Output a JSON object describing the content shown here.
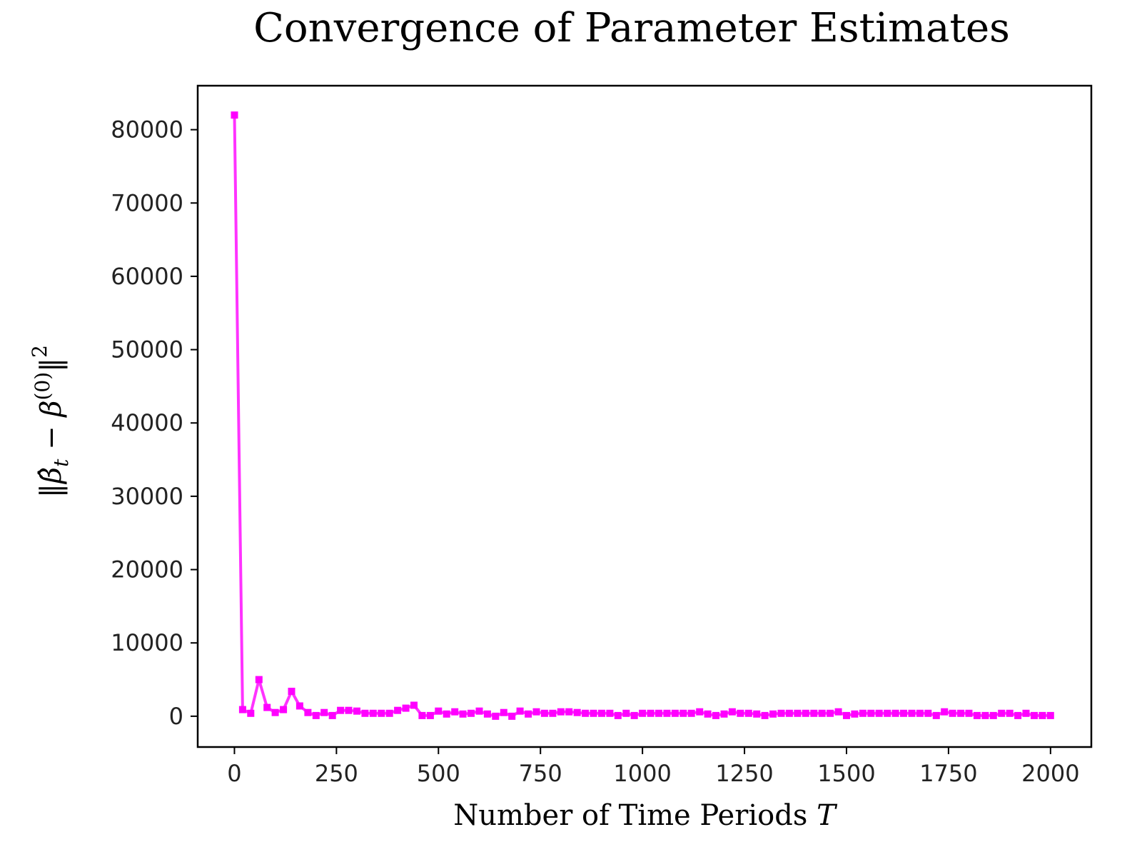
{
  "chart_data": {
    "type": "line",
    "title": "Convergence of Parameter Estimates",
    "xlabel": "Number of Time Periods ",
    "xlabel_var": "T",
    "ylabel_parts": {
      "norm_open": "‖",
      "beta_hat": "β̂",
      "sub_t": "t",
      "minus": " − ",
      "beta": "β",
      "sup_0": "(0)",
      "norm_close": "‖",
      "sup_2": "2"
    },
    "xlim": [
      -90,
      2100
    ],
    "ylim": [
      -4200,
      86000
    ],
    "xticks": [
      0,
      250,
      500,
      750,
      1000,
      1250,
      1500,
      1750,
      2000
    ],
    "xtick_labels": [
      "0",
      "250",
      "500",
      "750",
      "1000",
      "1250",
      "1500",
      "1750",
      "2000"
    ],
    "yticks": [
      0,
      10000,
      20000,
      30000,
      40000,
      50000,
      60000,
      70000,
      80000
    ],
    "ytick_labels": [
      "0",
      "10000",
      "20000",
      "30000",
      "40000",
      "50000",
      "60000",
      "70000",
      "80000"
    ],
    "grid": false,
    "color": "#ff00ff",
    "marker": "square",
    "x": [
      0,
      20,
      40,
      60,
      80,
      100,
      120,
      140,
      160,
      180,
      200,
      220,
      240,
      260,
      280,
      300,
      320,
      340,
      360,
      380,
      400,
      420,
      440,
      460,
      480,
      500,
      520,
      540,
      560,
      580,
      600,
      620,
      640,
      660,
      680,
      700,
      720,
      740,
      760,
      780,
      800,
      820,
      840,
      860,
      880,
      900,
      920,
      940,
      960,
      980,
      1000,
      1020,
      1040,
      1060,
      1080,
      1100,
      1120,
      1140,
      1160,
      1180,
      1200,
      1220,
      1240,
      1260,
      1280,
      1300,
      1320,
      1340,
      1360,
      1380,
      1400,
      1420,
      1440,
      1460,
      1480,
      1500,
      1520,
      1540,
      1560,
      1580,
      1600,
      1620,
      1640,
      1660,
      1680,
      1700,
      1720,
      1740,
      1760,
      1780,
      1800,
      1820,
      1840,
      1860,
      1880,
      1900,
      1920,
      1940,
      1960,
      1980,
      2000
    ],
    "y": [
      82000,
      900,
      400,
      5000,
      1200,
      500,
      900,
      3400,
      1400,
      500,
      100,
      500,
      100,
      800,
      800,
      700,
      400,
      400,
      400,
      400,
      800,
      1100,
      1500,
      100,
      100,
      700,
      300,
      600,
      300,
      400,
      700,
      300,
      0,
      500,
      0,
      700,
      300,
      600,
      400,
      400,
      600,
      600,
      500,
      400,
      400,
      400,
      400,
      100,
      400,
      100,
      400,
      400,
      400,
      400,
      400,
      400,
      400,
      600,
      300,
      100,
      300,
      600,
      400,
      400,
      300,
      100,
      300,
      400,
      400,
      400,
      400,
      400,
      400,
      400,
      600,
      100,
      300,
      400,
      400,
      400,
      400,
      400,
      400,
      400,
      400,
      400,
      100,
      600,
      400,
      400,
      400,
      100,
      100,
      100,
      400,
      400,
      100,
      400,
      100,
      100,
      100
    ]
  }
}
